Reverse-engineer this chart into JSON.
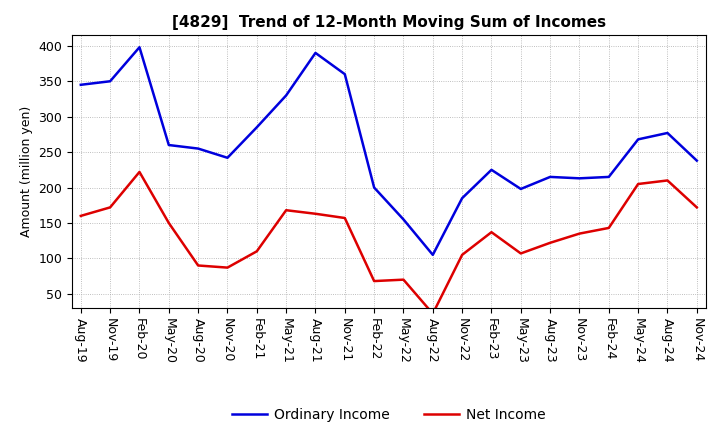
{
  "title": "[4829]  Trend of 12-Month Moving Sum of Incomes",
  "ylabel": "Amount (million yen)",
  "x_labels": [
    "Aug-19",
    "Nov-19",
    "Feb-20",
    "May-20",
    "Aug-20",
    "Nov-20",
    "Feb-21",
    "May-21",
    "Aug-21",
    "Nov-21",
    "Feb-22",
    "May-22",
    "Aug-22",
    "Nov-22",
    "Feb-23",
    "May-23",
    "Aug-23",
    "Nov-23",
    "Feb-24",
    "May-24",
    "Aug-24",
    "Nov-24"
  ],
  "ordinary_income": [
    345,
    350,
    398,
    260,
    255,
    242,
    285,
    330,
    390,
    360,
    200,
    155,
    105,
    185,
    225,
    198,
    215,
    213,
    215,
    268,
    277,
    238
  ],
  "net_income": [
    160,
    172,
    222,
    150,
    90,
    87,
    110,
    168,
    163,
    157,
    68,
    70,
    22,
    105,
    137,
    107,
    122,
    135,
    143,
    205,
    210,
    172
  ],
  "ordinary_color": "#0000dd",
  "net_color": "#dd0000",
  "ylim": [
    30,
    415
  ],
  "yticks": [
    50,
    100,
    150,
    200,
    250,
    300,
    350,
    400
  ],
  "background_color": "#ffffff",
  "plot_bg_color": "#ffffff",
  "grid_color": "#aaaaaa",
  "title_fontsize": 11,
  "axis_label_fontsize": 9,
  "tick_fontsize": 9,
  "legend_labels": [
    "Ordinary Income",
    "Net Income"
  ],
  "line_width": 1.8
}
